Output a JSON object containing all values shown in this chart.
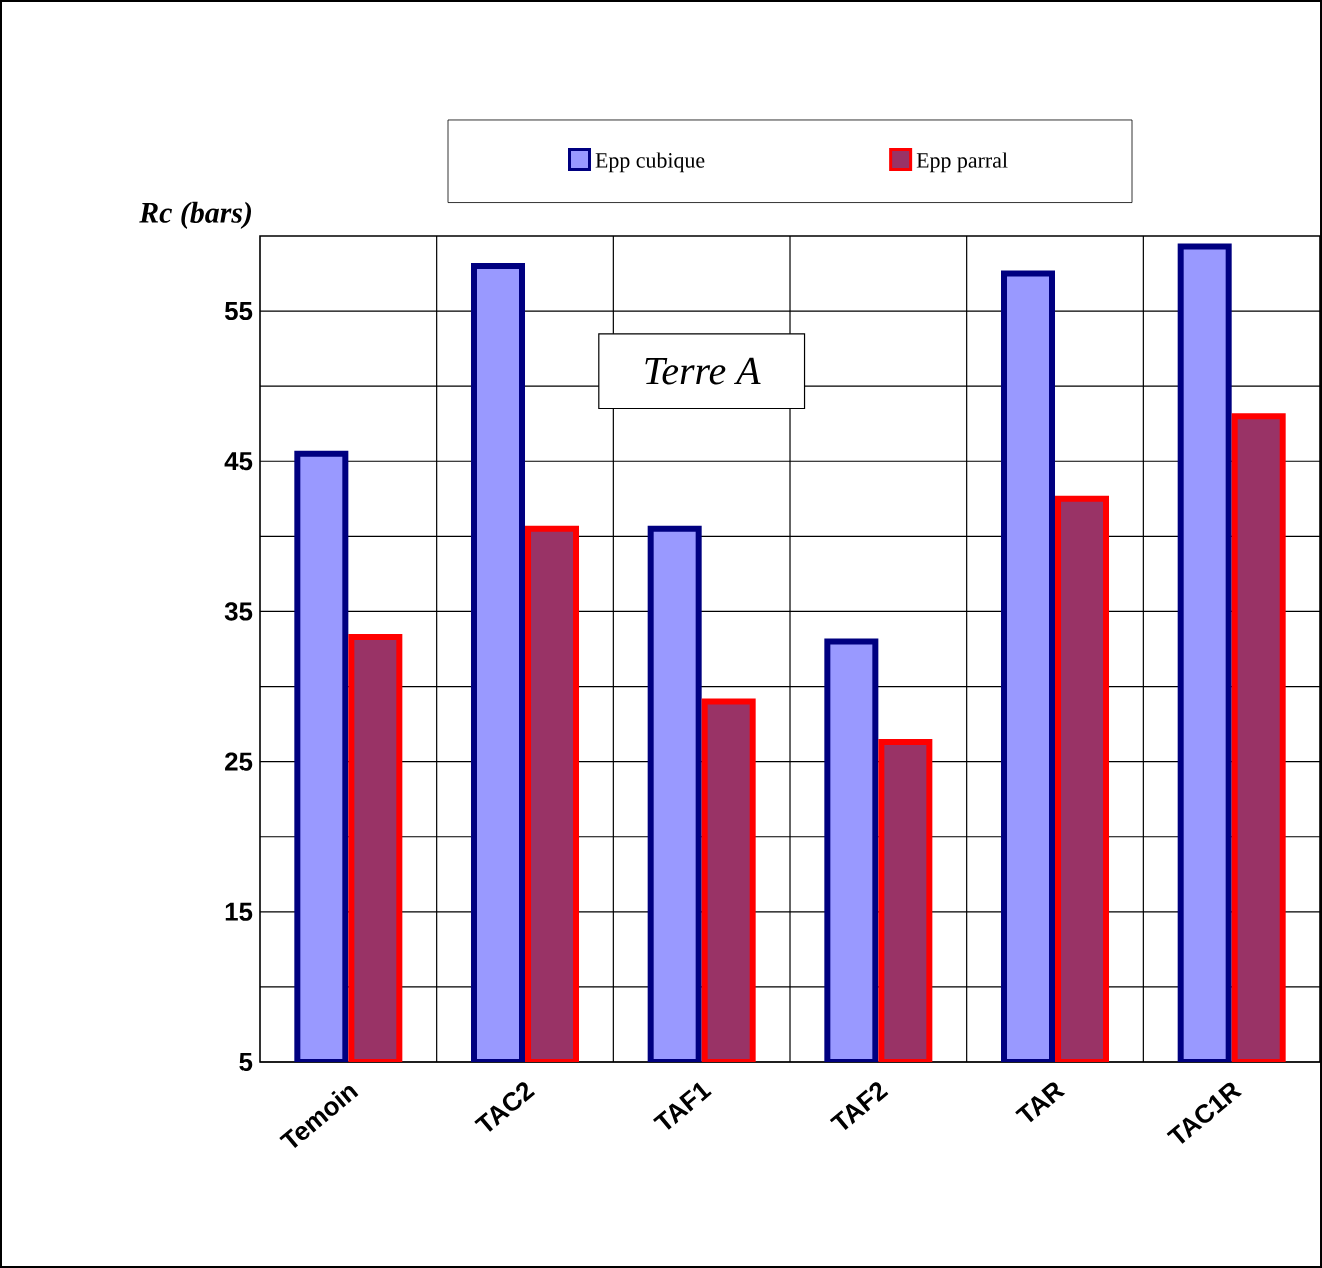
{
  "chart_data": {
    "type": "bar",
    "ylabel": "Rc (bars)",
    "annotations": [
      "Terre A"
    ],
    "categories": [
      "Temoin",
      "TAC2",
      "TAF1",
      "TAF2",
      "TAR",
      "TAC1R"
    ],
    "series": [
      {
        "name": "Epp cubique",
        "color": "#9999ff",
        "values": [
          45.5,
          58,
          40.5,
          33,
          57.5,
          59.3
        ]
      },
      {
        "name": "Epp parral",
        "color": "#993366",
        "values": [
          33.3,
          40.5,
          29,
          26.3,
          42.5,
          48
        ]
      }
    ],
    "ylim": [
      5,
      60
    ],
    "yticks": [
      5,
      15,
      25,
      35,
      45,
      55
    ],
    "grid": true,
    "legend": "top"
  }
}
